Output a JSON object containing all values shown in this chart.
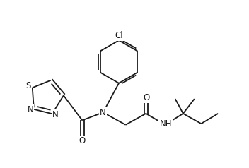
{
  "background_color": "#ffffff",
  "line_color": "#1a1a1a",
  "line_width": 1.3,
  "font_size": 8.5,
  "figsize": [
    3.52,
    2.38
  ],
  "dpi": 100,
  "xlim": [
    -2.0,
    2.4
  ],
  "ylim": [
    -1.1,
    1.35
  ]
}
